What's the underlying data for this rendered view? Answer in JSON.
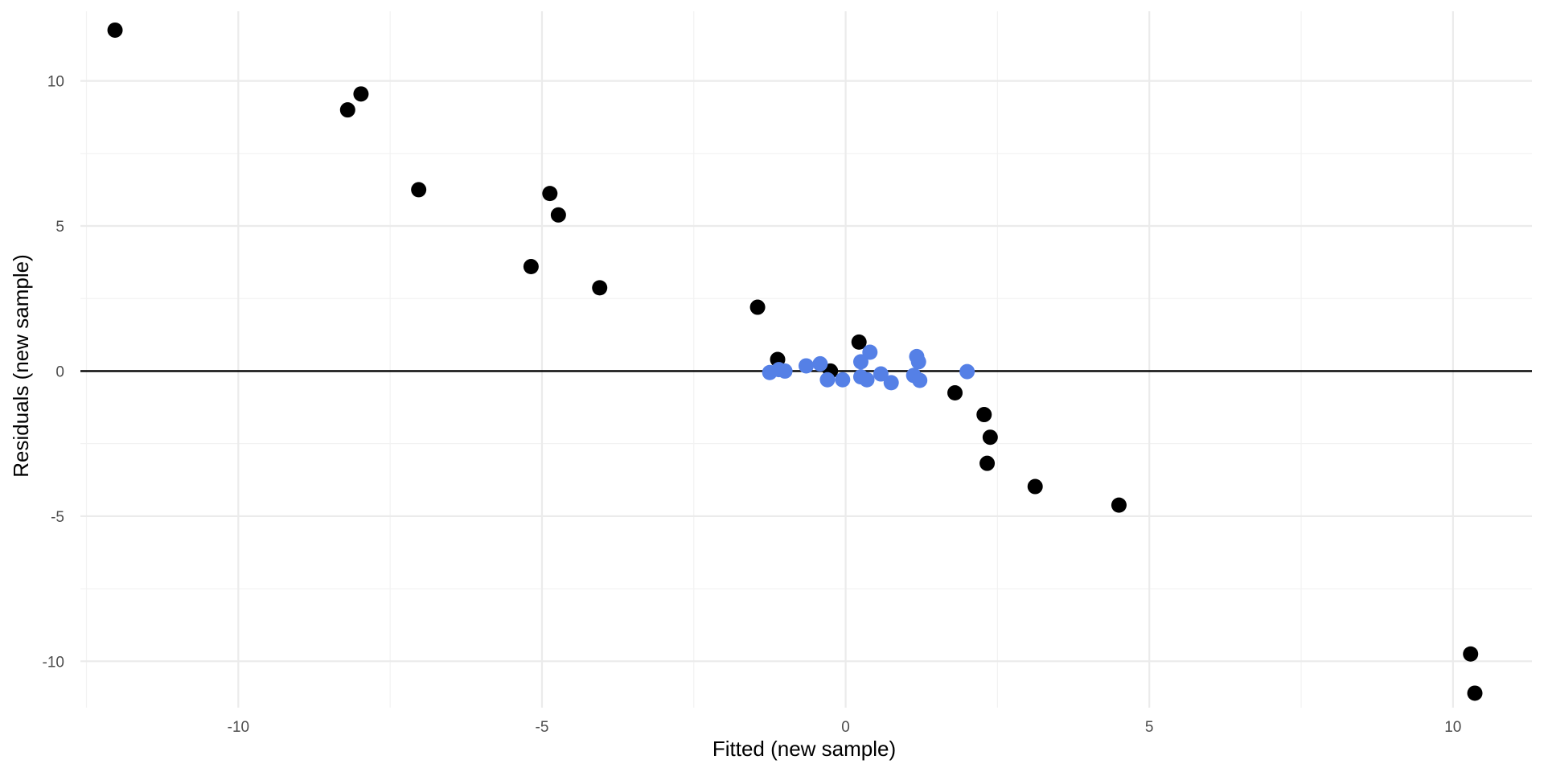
{
  "chart_data": {
    "type": "scatter",
    "title": "",
    "xlabel": "Fitted (new sample)",
    "ylabel": "Residuals (new sample)",
    "xlim": [
      -12.6,
      11.3
    ],
    "ylim": [
      -11.6,
      12.4
    ],
    "x_ticks": [
      -10,
      -5,
      0,
      5,
      10
    ],
    "x_tick_labels": [
      "-10",
      "-5",
      "0",
      "5",
      "10"
    ],
    "y_ticks": [
      -10,
      -5,
      0,
      5,
      10
    ],
    "y_tick_labels": [
      "-10",
      "-5",
      "0",
      "5",
      "10"
    ],
    "grid": true,
    "reference_line": {
      "y": 0,
      "color": "#000000"
    },
    "series": [
      {
        "color": "#000000",
        "points": [
          [
            -12.03,
            11.75
          ],
          [
            -7.98,
            9.55
          ],
          [
            -8.2,
            9.0
          ],
          [
            -7.03,
            6.25
          ],
          [
            -4.87,
            6.12
          ],
          [
            -4.73,
            5.38
          ],
          [
            -5.18,
            3.6
          ],
          [
            -4.05,
            2.87
          ],
          [
            -1.45,
            2.2
          ],
          [
            -1.12,
            0.4
          ],
          [
            -0.25,
            0.0
          ],
          [
            0.22,
            1.0
          ],
          [
            1.8,
            -0.75
          ],
          [
            2.28,
            -1.5
          ],
          [
            2.38,
            -2.28
          ],
          [
            2.33,
            -3.18
          ],
          [
            3.12,
            -3.98
          ],
          [
            4.5,
            -4.62
          ],
          [
            10.29,
            -9.75
          ],
          [
            10.36,
            -11.1
          ]
        ]
      },
      {
        "color": "#5580e6",
        "points": [
          [
            -1.25,
            -0.05
          ],
          [
            -1.0,
            0.0
          ],
          [
            -1.1,
            0.05
          ],
          [
            -0.65,
            0.18
          ],
          [
            -0.42,
            0.25
          ],
          [
            -0.3,
            -0.3
          ],
          [
            -0.05,
            -0.3
          ],
          [
            0.25,
            0.32
          ],
          [
            0.25,
            -0.2
          ],
          [
            0.4,
            0.65
          ],
          [
            0.35,
            -0.3
          ],
          [
            0.58,
            -0.1
          ],
          [
            0.75,
            -0.4
          ],
          [
            1.17,
            0.5
          ],
          [
            1.2,
            0.32
          ],
          [
            1.12,
            -0.15
          ],
          [
            1.22,
            -0.32
          ],
          [
            2.0,
            -0.02
          ]
        ]
      }
    ]
  }
}
